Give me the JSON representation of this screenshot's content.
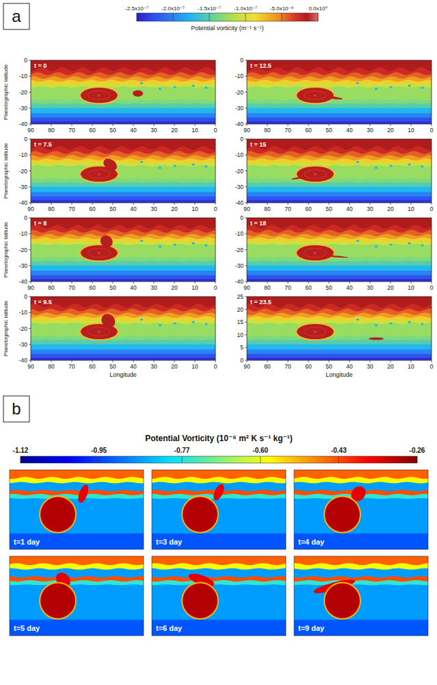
{
  "chart_data": [
    {
      "type": "heatmap",
      "panel_label": "a",
      "x_label": "Longitude",
      "y_label": "Planetographic latitude",
      "colorbar": {
        "label": "Potential vorticity (m⁻¹ s⁻¹)",
        "range": [
          -2.5e-07,
          0
        ],
        "ticks": [
          {
            "value": -2.5e-07,
            "label": "-2.5x10⁻⁷"
          },
          {
            "value": -2e-07,
            "label": "-2.0x10⁻⁷"
          },
          {
            "value": -1.5e-07,
            "label": "-1.5x10⁻⁷"
          },
          {
            "value": -1e-07,
            "label": "-1.0x10⁻⁷"
          },
          {
            "value": -5e-08,
            "label": "-5.0x10⁻⁸"
          },
          {
            "value": 0,
            "label": "0.0x10⁰"
          }
        ]
      },
      "panels": [
        {
          "title": "t = 0",
          "xlim": [
            90,
            0
          ],
          "ylim": [
            -40,
            0
          ],
          "xticks": [
            90,
            80,
            70,
            60,
            50,
            40,
            30,
            20,
            10,
            0
          ],
          "yticks": [
            -40,
            -30,
            -20,
            -10,
            0
          ]
        },
        {
          "title": "t = 12.5",
          "xlim": [
            90,
            0
          ],
          "ylim": [
            -40,
            0
          ],
          "xticks": [
            90,
            80,
            70,
            60,
            50,
            40,
            30,
            20,
            10,
            0
          ],
          "yticks": [
            -40,
            -30,
            -20,
            -10,
            0
          ]
        },
        {
          "title": "t = 7.5",
          "xlim": [
            90,
            0
          ],
          "ylim": [
            -40,
            0
          ],
          "xticks": [
            90,
            80,
            70,
            60,
            50,
            40,
            30,
            20,
            10,
            0
          ],
          "yticks": [
            -40,
            -30,
            -20,
            -10,
            0
          ]
        },
        {
          "title": "t = 15",
          "xlim": [
            90,
            0
          ],
          "ylim": [
            -40,
            0
          ],
          "xticks": [
            90,
            80,
            70,
            60,
            50,
            40,
            30,
            20,
            10,
            0
          ],
          "yticks": [
            -40,
            -30,
            -20,
            -10,
            0
          ]
        },
        {
          "title": "t = 8",
          "xlim": [
            90,
            0
          ],
          "ylim": [
            -40,
            0
          ],
          "xticks": [
            90,
            80,
            70,
            60,
            50,
            40,
            30,
            20,
            10,
            0
          ],
          "yticks": [
            -40,
            -30,
            -20,
            -10,
            0
          ]
        },
        {
          "title": "t = 18",
          "xlim": [
            90,
            0
          ],
          "ylim": [
            -40,
            0
          ],
          "xticks": [
            90,
            80,
            70,
            60,
            50,
            40,
            30,
            20,
            10,
            0
          ],
          "yticks": [
            -40,
            -30,
            -20,
            -10,
            0
          ]
        },
        {
          "title": "t = 9.5",
          "xlim": [
            90,
            0
          ],
          "ylim": [
            -40,
            0
          ],
          "xticks": [
            90,
            80,
            70,
            60,
            50,
            40,
            30,
            20,
            10,
            0
          ],
          "yticks": [
            -40,
            -30,
            -20,
            -10,
            0
          ]
        },
        {
          "title": "t = 23.5",
          "xlim": [
            90,
            0
          ],
          "ylim": [
            0,
            25
          ],
          "xticks": [
            90,
            80,
            70,
            60,
            50,
            40,
            30,
            20,
            10,
            0
          ],
          "yticks": [
            0,
            5,
            10,
            15,
            20,
            25
          ]
        }
      ]
    },
    {
      "type": "heatmap",
      "panel_label": "b",
      "tick_labels": false,
      "colorbar": {
        "label": "Potential Vorticity (10⁻⁶ m² K s⁻¹ kg⁻¹)",
        "range": [
          -1.12,
          -0.26
        ],
        "ticks": [
          -1.12,
          -0.95,
          -0.77,
          {
            "value": -0.6,
            "label": "-0.60"
          },
          -0.43,
          -0.26
        ]
      },
      "panels": [
        {
          "title": "t=1 day"
        },
        {
          "title": "t=3 day"
        },
        {
          "title": "t=4 day"
        },
        {
          "title": "t=5 day"
        },
        {
          "title": "t=6 day"
        },
        {
          "title": "t=9 day"
        }
      ]
    }
  ]
}
